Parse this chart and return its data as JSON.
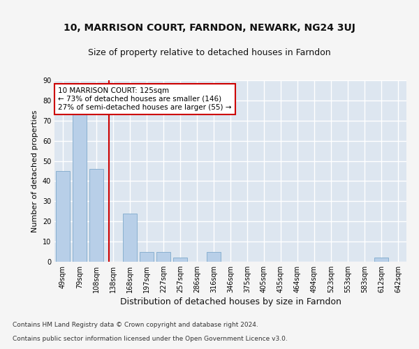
{
  "title1": "10, MARRISON COURT, FARNDON, NEWARK, NG24 3UJ",
  "title2": "Size of property relative to detached houses in Farndon",
  "xlabel": "Distribution of detached houses by size in Farndon",
  "ylabel": "Number of detached properties",
  "categories": [
    "49sqm",
    "79sqm",
    "108sqm",
    "138sqm",
    "168sqm",
    "197sqm",
    "227sqm",
    "257sqm",
    "286sqm",
    "316sqm",
    "346sqm",
    "375sqm",
    "405sqm",
    "435sqm",
    "464sqm",
    "494sqm",
    "523sqm",
    "553sqm",
    "583sqm",
    "612sqm",
    "642sqm"
  ],
  "values": [
    45,
    73,
    46,
    0,
    24,
    5,
    5,
    2,
    0,
    5,
    0,
    0,
    0,
    0,
    0,
    0,
    0,
    0,
    0,
    2,
    0
  ],
  "bar_color": "#b8cfe8",
  "bar_edge_color": "#8ab0d0",
  "vline_pos": 2.75,
  "vline_color": "#cc0000",
  "annotation_text": "10 MARRISON COURT: 125sqm\n← 73% of detached houses are smaller (146)\n27% of semi-detached houses are larger (55) →",
  "annotation_box_color": "#ffffff",
  "annotation_box_edge": "#cc0000",
  "footer1": "Contains HM Land Registry data © Crown copyright and database right 2024.",
  "footer2": "Contains public sector information licensed under the Open Government Licence v3.0.",
  "ylim": [
    0,
    90
  ],
  "yticks": [
    0,
    10,
    20,
    30,
    40,
    50,
    60,
    70,
    80,
    90
  ],
  "bg_color": "#dde6f0",
  "fig_color": "#f5f5f5",
  "grid_color": "#ffffff",
  "title1_fontsize": 10,
  "title2_fontsize": 9,
  "ylabel_fontsize": 8,
  "xlabel_fontsize": 9,
  "tick_fontsize": 7,
  "annotation_fontsize": 7.5
}
